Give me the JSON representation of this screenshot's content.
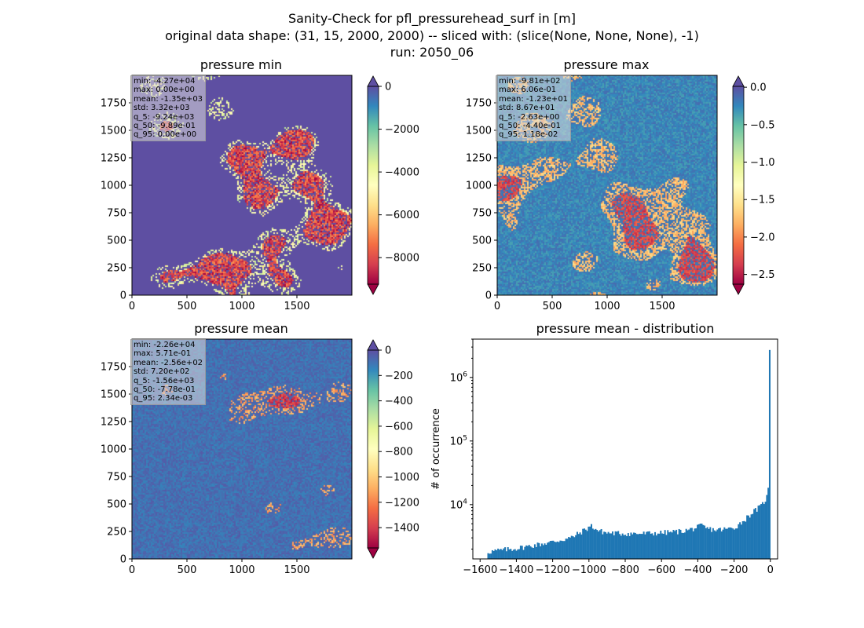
{
  "figure": {
    "title_line1": "Sanity-Check for pfl_pressurehead_surf in [m]",
    "title_line2": "original data shape: (31, 15, 2000, 2000) -- sliced with: (slice(None, None, None), -1)",
    "title_line3": "run: 2050_06"
  },
  "chart_data": [
    {
      "type": "heatmap",
      "title": "pressure min",
      "colormap": "Spectral",
      "xlim": [
        0,
        2000
      ],
      "ylim": [
        0,
        2000
      ],
      "xticks": [
        0,
        500,
        1000,
        1500
      ],
      "yticks": [
        0,
        250,
        500,
        750,
        1000,
        1250,
        1500,
        1750
      ],
      "colorbar": {
        "min": -9240,
        "max": 0,
        "ticks": [
          0,
          -2000,
          -4000,
          -6000,
          -8000
        ],
        "extend": "both"
      },
      "stats": [
        "min: -4.27e+04",
        "max: 0.00e+00",
        "mean: -1.35e+03",
        "std: 3.32e+03",
        "q_5: -9.24e+03",
        "q_50: -9.89e-01",
        "q_95: 0.00e+00"
      ]
    },
    {
      "type": "heatmap",
      "title": "pressure max",
      "colormap": "Spectral",
      "xlim": [
        0,
        2000
      ],
      "ylim": [
        0,
        2000
      ],
      "xticks": [
        0,
        500,
        1000,
        1500
      ],
      "yticks": [
        0,
        250,
        500,
        750,
        1000,
        1250,
        1500,
        1750
      ],
      "colorbar": {
        "min": -2.63,
        "max": 0.0118,
        "ticks": [
          0.0,
          -0.5,
          -1.0,
          -1.5,
          -2.0,
          -2.5
        ],
        "tick_labels": [
          "0.0",
          "−0.5",
          "−1.0",
          "−1.5",
          "−2.0",
          "−2.5"
        ],
        "extend": "both"
      },
      "stats": [
        "min: -9.81e+02",
        "max: 6.06e-01",
        "mean: -1.23e+01",
        "std: 8.67e+01",
        "q_5: -2.63e+00",
        "q_50: -4.40e-01",
        "q_95: 1.18e-02"
      ]
    },
    {
      "type": "heatmap",
      "title": "pressure mean",
      "colormap": "Spectral",
      "xlim": [
        0,
        2000
      ],
      "ylim": [
        0,
        2000
      ],
      "xticks": [
        0,
        500,
        1000,
        1500
      ],
      "yticks": [
        0,
        250,
        500,
        750,
        1000,
        1250,
        1500,
        1750
      ],
      "colorbar": {
        "min": -1560,
        "max": 0.00234,
        "ticks": [
          0,
          -200,
          -400,
          -600,
          -800,
          -1000,
          -1200,
          -1400
        ],
        "extend": "both"
      },
      "stats": [
        "min: -2.26e+04",
        "max: 5.71e-01",
        "mean: -2.56e+02",
        "std: 7.20e+02",
        "q_5: -1.56e+03",
        "q_50: -7.78e-01",
        "q_95: 2.34e-03"
      ]
    },
    {
      "type": "bar",
      "title": "pressure mean - distribution",
      "ylabel": "# of occurrence",
      "yscale": "log",
      "xlim": [
        -1640,
        40
      ],
      "ylim": [
        1400,
        4000000
      ],
      "xticks": [
        -1600,
        -1400,
        -1200,
        -1000,
        -800,
        -600,
        -400,
        -200,
        0
      ],
      "yticks": [
        10000,
        100000,
        1000000
      ],
      "bar_color": "#1f77b4",
      "anchors": [
        [
          -1560,
          1800
        ],
        [
          -1500,
          1900
        ],
        [
          -1400,
          2050
        ],
        [
          -1300,
          2300
        ],
        [
          -1200,
          2600
        ],
        [
          -1100,
          3000
        ],
        [
          -1050,
          3600
        ],
        [
          -1000,
          4400
        ],
        [
          -990,
          4700
        ],
        [
          -950,
          3900
        ],
        [
          -900,
          3600
        ],
        [
          -800,
          3500
        ],
        [
          -700,
          3500
        ],
        [
          -600,
          3600
        ],
        [
          -500,
          3800
        ],
        [
          -450,
          4000
        ],
        [
          -400,
          4400
        ],
        [
          -380,
          4700
        ],
        [
          -350,
          4200
        ],
        [
          -300,
          4000
        ],
        [
          -250,
          4100
        ],
        [
          -200,
          4300
        ],
        [
          -150,
          5500
        ],
        [
          -100,
          7500
        ],
        [
          -50,
          9500
        ],
        [
          -20,
          13000
        ],
        [
          -8,
          20000
        ],
        [
          0,
          2700000
        ]
      ]
    }
  ]
}
